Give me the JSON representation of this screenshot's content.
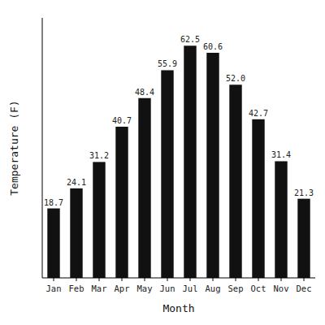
{
  "chart_data": {
    "type": "bar",
    "categories": [
      "Jan",
      "Feb",
      "Mar",
      "Apr",
      "May",
      "Jun",
      "Jul",
      "Aug",
      "Sep",
      "Oct",
      "Nov",
      "Dec"
    ],
    "values": [
      18.7,
      24.1,
      31.2,
      40.7,
      48.4,
      55.9,
      62.5,
      60.6,
      52.0,
      42.7,
      31.4,
      21.3
    ],
    "value_labels": [
      "18.7",
      "24.1",
      "31.2",
      "40.7",
      "48.4",
      "55.9",
      "62.5",
      "60.6",
      "52.0",
      "42.7",
      "31.4",
      "21.3"
    ],
    "color": "#111111",
    "xlabel": "Month",
    "ylabel": "Temperature (F)",
    "ylim": [
      0,
      70
    ],
    "data_labels": true,
    "tick_labels": "x",
    "grid": false
  }
}
